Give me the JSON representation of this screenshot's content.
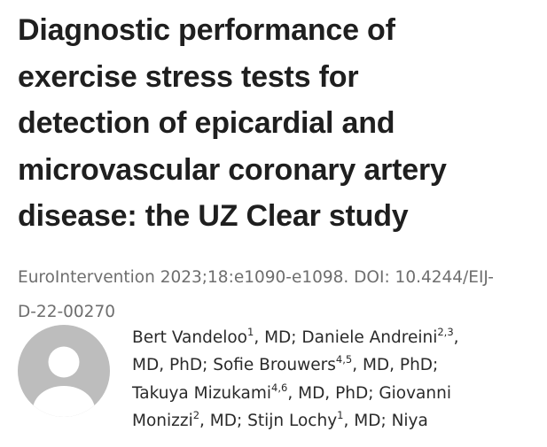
{
  "article": {
    "title_lines": [
      "Diagnostic performance of",
      "exercise stress tests for",
      "detection of epicardial and",
      "microvascular coronary artery",
      "disease: the UZ Clear study"
    ],
    "citation_lines": [
      "EuroIntervention 2023;18:e1090-e1098. DOI: 10.4244/EIJ-",
      "D-22-00270"
    ]
  },
  "authors": {
    "avatar_icon": "user-avatar-icon",
    "lines": [
      {
        "t1": "Bert Vandeloo",
        "s1": "1",
        "t2": ", MD; Daniele Andreini",
        "s2": "2,3",
        "t3": ","
      },
      {
        "t1": "MD, PhD; Sofie Brouwers",
        "s1": "4,5",
        "t2": ", MD, PhD;",
        "s2": "",
        "t3": ""
      },
      {
        "t1": "Takuya Mizukami",
        "s1": "4,6",
        "t2": ", MD, PhD; Giovanni",
        "s2": "",
        "t3": ""
      },
      {
        "t1": "Monizzi",
        "s1": "2",
        "t2": ", MD; Stijn Lochy",
        "s2": "1",
        "t3": ", MD; Niya"
      }
    ]
  },
  "colors": {
    "title": "#1f1f1f",
    "citation": "#6e6e6e",
    "avatar_bg": "#bdbdbd",
    "avatar_fg": "#ffffff"
  }
}
